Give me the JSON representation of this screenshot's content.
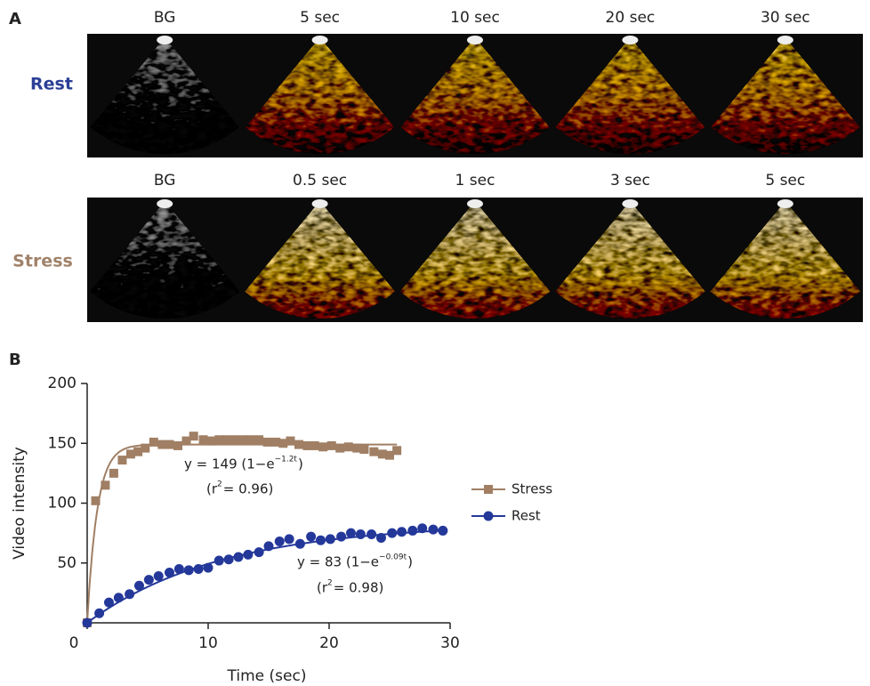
{
  "panel_a": {
    "label": "A",
    "rows": [
      {
        "name": "Rest",
        "frames": [
          "BG",
          "5 sec",
          "10 sec",
          "20 sec",
          "30 sec"
        ]
      },
      {
        "name": "Stress",
        "frames": [
          "BG",
          "0.5 sec",
          "1 sec",
          "3 sec",
          "5 sec"
        ]
      }
    ]
  },
  "chart_data": {
    "type": "scatter",
    "panel_label": "B",
    "x_label": "Time (sec)",
    "y_label": "Video intensity",
    "xlim": [
      0,
      30
    ],
    "ylim": [
      0,
      200
    ],
    "xticks": [
      0,
      10,
      20,
      30
    ],
    "yticks": [
      50,
      100,
      150,
      200
    ],
    "series": [
      {
        "name": "Stress",
        "color": "#a07f64",
        "marker": "square",
        "x": [
          0,
          0.7,
          1.5,
          2.2,
          2.9,
          3.6,
          4.2,
          4.8,
          5.5,
          6.2,
          6.8,
          7.5,
          8.2,
          8.8,
          9.6,
          10.2,
          10.9,
          11.5,
          12.2,
          12.9,
          13.5,
          14.2,
          14.9,
          15.6,
          16.2,
          16.8,
          17.5,
          18.2,
          18.8,
          19.5,
          20.2,
          20.9,
          21.6,
          22.3,
          22.9,
          23.7,
          24.4,
          25.0,
          25.6
        ],
        "values": [
          0,
          102,
          115,
          125,
          136,
          141,
          143,
          146,
          151,
          149,
          149,
          148,
          152,
          156,
          153,
          152,
          153,
          153,
          153,
          153,
          153,
          153,
          151,
          151,
          150,
          152,
          149,
          148,
          148,
          147,
          148,
          146,
          147,
          146,
          145,
          143,
          141,
          140,
          144
        ],
        "fit": {
          "a": 149,
          "k": 1.2
        },
        "equation": {
          "text": "y = 149 (1−e",
          "sup": "−1.2t",
          "end": ")"
        },
        "r2": {
          "text": "(r",
          "sup": "2",
          "end": " = 0.96)"
        }
      },
      {
        "name": "Rest",
        "color": "#24389a",
        "marker": "circle",
        "x": [
          0,
          1.0,
          1.8,
          2.6,
          3.5,
          4.3,
          5.1,
          5.9,
          6.8,
          7.6,
          8.4,
          9.2,
          10.0,
          10.9,
          11.7,
          12.5,
          13.3,
          14.2,
          15.0,
          15.9,
          16.7,
          17.6,
          18.5,
          19.3,
          20.1,
          21.0,
          21.8,
          22.6,
          23.5,
          24.3,
          25.2,
          26.0,
          26.9,
          27.7,
          28.6,
          29.4
        ],
        "values": [
          0,
          8,
          17,
          21,
          24,
          31,
          36,
          39,
          42,
          45,
          44,
          45,
          46,
          52,
          53,
          55,
          57,
          59,
          64,
          68,
          70,
          66,
          72,
          69,
          70,
          72,
          75,
          74,
          74,
          71,
          75,
          76,
          77,
          79,
          78,
          77
        ],
        "fit": {
          "a": 83,
          "k": 0.09
        },
        "equation": {
          "text": "y = 83 (1−e",
          "sup": "−0.09t",
          "end": ")"
        },
        "r2": {
          "text": "(r",
          "sup": "2",
          "end": " = 0.98)"
        }
      }
    ]
  }
}
